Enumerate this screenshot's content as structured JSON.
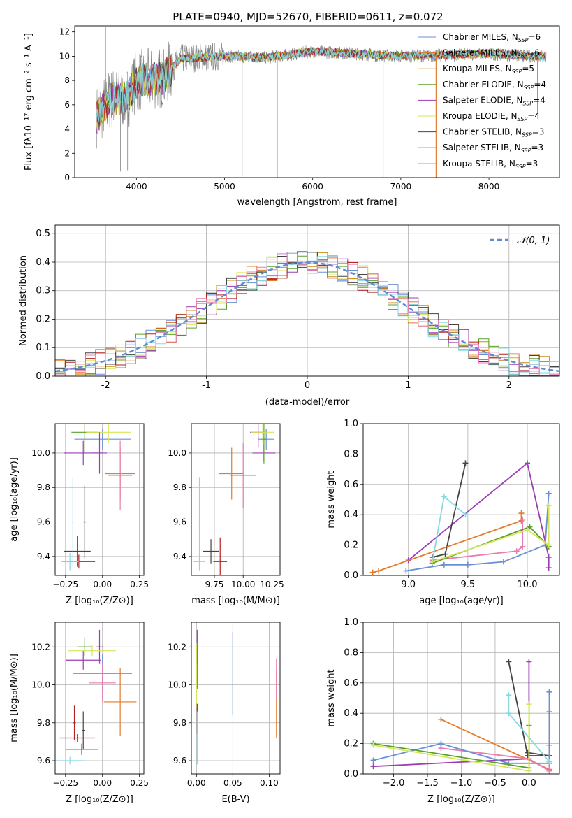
{
  "figure": {
    "title": "PLATE=0940, MJD=52670, FIBERID=0611, z=0.072"
  },
  "palette": {
    "chabrier_miles": "#6b8fd6",
    "salpeter_miles": "#e57a2a",
    "kroupa_miles": "#c98a10",
    "chabrier_elodie": "#5aa02c",
    "salpeter_elodie": "#9b3db3",
    "kroupa_elodie": "#d6e65a",
    "chabrier_stelib": "#444444",
    "salpeter_stelib": "#b22222",
    "kroupa_stelib": "#88d8e0",
    "observed": "#808080",
    "pink": "#e87db0",
    "normal": "#5b8bd6"
  },
  "chart_data": [
    {
      "id": "spectrum",
      "type": "line",
      "title": "PLATE=0940, MJD=52670, FIBERID=0611, z=0.072",
      "xlabel": "wavelength [Angstrom, rest frame]",
      "ylabel": "Flux [fλ10⁻¹⁷ erg cm⁻² s⁻¹ A⁻¹]",
      "xlim": [
        3300,
        8800
      ],
      "ylim": [
        0,
        12.5
      ],
      "xticks": [
        4000,
        5000,
        6000,
        7000,
        8000
      ],
      "yticks": [
        0,
        2,
        4,
        6,
        8,
        10,
        12
      ],
      "continuum": [
        [
          3550,
          5
        ],
        [
          3700,
          6.5
        ],
        [
          3900,
          6.6
        ],
        [
          4000,
          8.0
        ],
        [
          4300,
          8.2
        ],
        [
          4500,
          9.8
        ],
        [
          5000,
          10.0
        ],
        [
          5500,
          9.9
        ],
        [
          6000,
          10.4
        ],
        [
          6500,
          10.2
        ],
        [
          7000,
          10.0
        ],
        [
          7500,
          10.1
        ],
        [
          8000,
          10.2
        ],
        [
          8500,
          10.0
        ],
        [
          8650,
          10.0
        ]
      ],
      "spikes": [
        [
          3650,
          12.4
        ],
        [
          3820,
          0.5
        ],
        [
          3900,
          0.6
        ],
        [
          5200,
          0.1
        ],
        [
          5600,
          0.0
        ],
        [
          6800,
          0.0
        ],
        [
          7400,
          0.0
        ],
        [
          8550,
          5.3
        ]
      ],
      "legend": [
        {
          "label": "Chabrier MILES, N",
          "sub": "SSP",
          "suffix": "=6",
          "color": "#6b8fd6"
        },
        {
          "label": "Salpeter MILES, N",
          "sub": "SSP",
          "suffix": "=6",
          "color": "#e57a2a"
        },
        {
          "label": "Kroupa MILES, N",
          "sub": "SSP",
          "suffix": "=5",
          "color": "#c98a10"
        },
        {
          "label": "Chabrier ELODIE, N",
          "sub": "SSP",
          "suffix": "=4",
          "color": "#5aa02c"
        },
        {
          "label": "Salpeter ELODIE, N",
          "sub": "SSP",
          "suffix": "=4",
          "color": "#9b3db3"
        },
        {
          "label": "Kroupa ELODIE, N",
          "sub": "SSP",
          "suffix": "=4",
          "color": "#d6e65a"
        },
        {
          "label": "Chabrier STELIB, N",
          "sub": "SSP",
          "suffix": "=3",
          "color": "#444444"
        },
        {
          "label": "Salpeter STELIB, N",
          "sub": "SSP",
          "suffix": "=3",
          "color": "#b22222"
        },
        {
          "label": "Kroupa STELIB, N",
          "sub": "SSP",
          "suffix": "=3",
          "color": "#88d8e0"
        }
      ]
    },
    {
      "id": "residuals",
      "type": "line",
      "xlabel": "(data-model)/error",
      "ylabel": "Normed distribution",
      "xlim": [
        -2.5,
        2.5
      ],
      "ylim": [
        0,
        0.53
      ],
      "xticks": [
        -2,
        -1,
        0,
        1,
        2
      ],
      "yticks": [
        0.0,
        0.1,
        0.2,
        0.3,
        0.4,
        0.5
      ],
      "legend": "$\\mathcal{N}(0,1)$",
      "legend_label": "𝒩(0, 1)",
      "bin_width": 0.1,
      "grid": true
    },
    {
      "id": "age_vs_Z",
      "type": "scatter",
      "xlabel": "Z [log₁₀(Z/Z⊙)]",
      "ylabel": "age  [log₁₀(age/yr)]",
      "xlim": [
        -0.32,
        0.28
      ],
      "ylim": [
        9.29,
        10.17
      ],
      "xticks": [
        -0.25,
        0.0,
        0.25
      ],
      "xtick_labels": [
        "−0.25",
        "0.00",
        "0.25"
      ],
      "yticks": [
        9.4,
        9.6,
        9.8,
        10.0
      ],
      "points": [
        {
          "x": 0.0,
          "y": 10.08,
          "xerr": 0.19,
          "yerr": 0.06,
          "color": "#6b8fd6"
        },
        {
          "x": 0.12,
          "y": 9.88,
          "xerr": 0.1,
          "yerr": 0.15,
          "color": "#e57a2a"
        },
        {
          "x": 0.12,
          "y": 9.87,
          "xerr": 0.08,
          "yerr": 0.2,
          "color": "#e87db0"
        },
        {
          "x": -0.13,
          "y": 10.0,
          "xerr": 0.13,
          "yerr": 0.07,
          "color": "#9b3db3"
        },
        {
          "x": -0.12,
          "y": 10.12,
          "xerr": 0.09,
          "yerr": 0.12,
          "color": "#5aa02c"
        },
        {
          "x": 0.04,
          "y": 10.12,
          "xerr": 0.15,
          "yerr": 0.06,
          "color": "#d6e65a"
        },
        {
          "x": -0.02,
          "y": 10.0,
          "xerr": 0.05,
          "yerr": 0.12,
          "color": "#9b3db3"
        },
        {
          "x": -0.17,
          "y": 9.43,
          "xerr": 0.09,
          "yerr": 0.09,
          "color": "#444444"
        },
        {
          "x": -0.12,
          "y": 9.6,
          "xerr": 0.01,
          "yerr": 0.21,
          "color": "#444444"
        },
        {
          "x": -0.16,
          "y": 9.37,
          "xerr": 0.11,
          "yerr": 0.04,
          "color": "#b22222"
        },
        {
          "x": -0.22,
          "y": 9.37,
          "xerr": 0.06,
          "yerr": 0.05,
          "color": "#88d8e0"
        },
        {
          "x": -0.2,
          "y": 9.6,
          "xerr": 0.01,
          "yerr": 0.26,
          "color": "#88d8e0"
        }
      ]
    },
    {
      "id": "age_vs_mass",
      "type": "scatter",
      "xlabel": "mass [log₁₀(M/M⊙)]",
      "ylabel": "",
      "xlim": [
        9.55,
        10.32
      ],
      "ylim": [
        9.29,
        10.17
      ],
      "xticks": [
        9.75,
        10.0,
        10.25
      ],
      "xtick_labels": [
        "9.75",
        "10.00",
        "10.25"
      ],
      "yticks": [
        9.4,
        9.6,
        9.8,
        10.0
      ],
      "points": [
        {
          "x": 10.2,
          "y": 10.08,
          "xerr": 0.07,
          "yerr": 0.06,
          "color": "#6b8fd6"
        },
        {
          "x": 9.9,
          "y": 9.88,
          "xerr": 0.11,
          "yerr": 0.15,
          "color": "#e57a2a"
        },
        {
          "x": 10.0,
          "y": 9.87,
          "xerr": 0.11,
          "yerr": 0.19,
          "color": "#e87db0"
        },
        {
          "x": 10.13,
          "y": 10.12,
          "xerr": 0.07,
          "yerr": 0.09,
          "color": "#9b3db3"
        },
        {
          "x": 10.18,
          "y": 10.0,
          "xerr": 0.1,
          "yerr": 0.05,
          "color": "#9b3db3"
        },
        {
          "x": 10.18,
          "y": 10.08,
          "xerr": 0.02,
          "yerr": 0.14,
          "color": "#5aa02c"
        },
        {
          "x": 10.17,
          "y": 10.12,
          "xerr": 0.1,
          "yerr": 0.06,
          "color": "#d6e65a"
        },
        {
          "x": 9.72,
          "y": 9.43,
          "xerr": 0.07,
          "yerr": 0.07,
          "color": "#444444"
        },
        {
          "x": 9.8,
          "y": 9.37,
          "xerr": 0.06,
          "yerr": 0.14,
          "color": "#b22222"
        },
        {
          "x": 9.62,
          "y": 9.37,
          "xerr": 0.05,
          "yerr": 0.05,
          "color": "#88d8e0"
        },
        {
          "x": 9.62,
          "y": 9.6,
          "xerr": 0.01,
          "yerr": 0.26,
          "color": "#88d8e0"
        }
      ]
    },
    {
      "id": "weight_vs_age",
      "type": "line",
      "xlabel": "age  [log₁₀(age/yr)]",
      "ylabel": "mass weight",
      "xlim": [
        8.62,
        10.27
      ],
      "ylim": [
        0,
        1.0
      ],
      "xticks": [
        9.0,
        9.5,
        10.0
      ],
      "xtick_labels": [
        "9.0",
        "9.5",
        "10.0"
      ],
      "yticks": [
        0.0,
        0.2,
        0.4,
        0.6,
        0.8,
        1.0
      ],
      "series": [
        {
          "color": "#9b3db3",
          "points": [
            [
              9.0,
              0.1
            ],
            [
              10.0,
              0.74
            ],
            [
              10.18,
              0.12
            ],
            [
              10.18,
              0.05
            ]
          ]
        },
        {
          "color": "#444444",
          "points": [
            [
              9.2,
              0.12
            ],
            [
              9.31,
              0.14
            ],
            [
              9.48,
              0.74
            ]
          ]
        },
        {
          "color": "#e57a2a",
          "points": [
            [
              8.7,
              0.02
            ],
            [
              8.75,
              0.03
            ],
            [
              9.95,
              0.36
            ],
            [
              9.95,
              0.41
            ]
          ]
        },
        {
          "color": "#e87db0",
          "points": [
            [
              9.2,
              0.1
            ],
            [
              9.91,
              0.16
            ],
            [
              9.96,
              0.19
            ],
            [
              9.96,
              0.37
            ]
          ]
        },
        {
          "color": "#6b8fd6",
          "points": [
            [
              8.98,
              0.03
            ],
            [
              9.3,
              0.07
            ],
            [
              9.5,
              0.07
            ],
            [
              9.8,
              0.09
            ],
            [
              10.15,
              0.2
            ],
            [
              10.18,
              0.54
            ]
          ]
        },
        {
          "color": "#88d8e0",
          "points": [
            [
              9.2,
              0.08
            ],
            [
              9.3,
              0.52
            ],
            [
              9.48,
              0.4
            ]
          ]
        },
        {
          "color": "#5aa02c",
          "points": [
            [
              9.2,
              0.08
            ],
            [
              10.02,
              0.32
            ],
            [
              10.18,
              0.19
            ]
          ]
        },
        {
          "color": "#d6e65a",
          "points": [
            [
              9.2,
              0.09
            ],
            [
              10.0,
              0.3
            ],
            [
              10.18,
              0.2
            ],
            [
              10.18,
              0.46
            ]
          ]
        }
      ]
    },
    {
      "id": "mass_vs_Z",
      "type": "scatter",
      "xlabel": "Z [log₁₀(Z/Z⊙)]",
      "ylabel": "mass [log₁₀(M/M⊙)]",
      "xlim": [
        -0.32,
        0.28
      ],
      "ylim": [
        9.53,
        10.33
      ],
      "xticks": [
        -0.25,
        0.0,
        0.25
      ],
      "xtick_labels": [
        "−0.25",
        "0.00",
        "0.25"
      ],
      "yticks": [
        9.6,
        9.8,
        10.0,
        10.2
      ],
      "points": [
        {
          "x": 0.0,
          "y": 10.06,
          "xerr": 0.2,
          "yerr": 0.1,
          "color": "#6b8fd6"
        },
        {
          "x": 0.12,
          "y": 9.91,
          "xerr": 0.11,
          "yerr": 0.18,
          "color": "#e57a2a"
        },
        {
          "x": 0.0,
          "y": 10.01,
          "xerr": 0.09,
          "yerr": 0.1,
          "color": "#e87db0"
        },
        {
          "x": -0.13,
          "y": 10.13,
          "xerr": 0.12,
          "yerr": 0.05,
          "color": "#9b3db3"
        },
        {
          "x": -0.02,
          "y": 10.2,
          "xerr": 0.02,
          "yerr": 0.09,
          "color": "#9b3db3"
        },
        {
          "x": -0.12,
          "y": 10.2,
          "xerr": 0.05,
          "yerr": 0.05,
          "color": "#5aa02c"
        },
        {
          "x": -0.07,
          "y": 10.18,
          "xerr": 0.16,
          "yerr": 0.03,
          "color": "#d6e65a"
        },
        {
          "x": -0.14,
          "y": 9.66,
          "xerr": 0.11,
          "yerr": 0.03,
          "color": "#444444"
        },
        {
          "x": -0.13,
          "y": 9.76,
          "xerr": 0.01,
          "yerr": 0.1,
          "color": "#444444"
        },
        {
          "x": -0.17,
          "y": 9.72,
          "xerr": 0.12,
          "yerr": 0.02,
          "color": "#b22222"
        },
        {
          "x": -0.19,
          "y": 9.8,
          "xerr": 0.01,
          "yerr": 0.09,
          "color": "#b22222"
        },
        {
          "x": -0.22,
          "y": 9.6,
          "xerr": 0.1,
          "yerr": 0.02,
          "color": "#88d8e0"
        }
      ]
    },
    {
      "id": "mass_vs_ebv",
      "type": "scatter",
      "xlabel": "E(B-V)",
      "ylabel": "",
      "xlim": [
        -0.007,
        0.115
      ],
      "ylim": [
        9.53,
        10.33
      ],
      "xticks": [
        0.0,
        0.05,
        0.1
      ],
      "xtick_labels": [
        "0.00",
        "0.05",
        "0.10"
      ],
      "yticks": [
        9.6,
        9.8,
        10.0,
        10.2
      ],
      "points": [
        {
          "x": 0.05,
          "y": 10.06,
          "xerr": 0.0,
          "yerr": 0.22,
          "color": "#6b8fd6"
        },
        {
          "x": 0.11,
          "y": 9.9,
          "xerr": 0.0,
          "yerr": 0.18,
          "color": "#e57a2a"
        },
        {
          "x": 0.11,
          "y": 10.03,
          "xerr": 0.0,
          "yerr": 0.11,
          "color": "#e87db0"
        },
        {
          "x": 0.001,
          "y": 10.2,
          "xerr": 0.0,
          "yerr": 0.09,
          "color": "#9b3db3"
        },
        {
          "x": 0.001,
          "y": 10.1,
          "xerr": 0.0,
          "yerr": 0.12,
          "color": "#5aa02c"
        },
        {
          "x": 0.0,
          "y": 10.05,
          "xerr": 0.0,
          "yerr": 0.17,
          "color": "#d6e65a"
        },
        {
          "x": 0.001,
          "y": 9.82,
          "xerr": 0.0,
          "yerr": 0.08,
          "color": "#b22222"
        },
        {
          "x": 0.001,
          "y": 9.72,
          "xerr": 0.0,
          "yerr": 0.14,
          "color": "#88d8e0"
        }
      ]
    },
    {
      "id": "weight_vs_Z",
      "type": "line",
      "xlabel": "Z [log₁₀(Z/Z⊙)]",
      "ylabel": "mass weight",
      "xlim": [
        -2.45,
        0.45
      ],
      "ylim": [
        0,
        1.0
      ],
      "xticks": [
        -2.0,
        -1.5,
        -1.0,
        -0.5,
        0.0
      ],
      "xtick_labels": [
        "−2.0",
        "−1.5",
        "−1.0",
        "−0.5",
        "0.0"
      ],
      "yticks": [
        0.0,
        0.2,
        0.4,
        0.6,
        0.8,
        1.0
      ],
      "series": [
        {
          "color": "#9b3db3",
          "points": [
            [
              -2.3,
              0.05
            ],
            [
              0.0,
              0.1
            ],
            [
              0.0,
              0.74
            ]
          ]
        },
        {
          "color": "#444444",
          "points": [
            [
              -0.02,
              0.14
            ],
            [
              0.3,
              0.12
            ],
            [
              -0.02,
              0.12
            ],
            [
              -0.3,
              0.74
            ]
          ]
        },
        {
          "color": "#e57a2a",
          "points": [
            [
              -1.3,
              0.36
            ],
            [
              0.3,
              0.03
            ],
            [
              0.3,
              0.41
            ]
          ]
        },
        {
          "color": "#e87db0",
          "points": [
            [
              -1.3,
              0.17
            ],
            [
              0.0,
              0.1
            ],
            [
              0.3,
              0.02
            ],
            [
              0.3,
              0.19
            ]
          ]
        },
        {
          "color": "#6b8fd6",
          "points": [
            [
              -2.3,
              0.09
            ],
            [
              -1.3,
              0.2
            ],
            [
              -0.3,
              0.07
            ],
            [
              0.3,
              0.07
            ],
            [
              0.3,
              0.54
            ]
          ]
        },
        {
          "color": "#88d8e0",
          "points": [
            [
              -0.3,
              0.52
            ],
            [
              -0.3,
              0.4
            ],
            [
              0.3,
              0.08
            ]
          ]
        },
        {
          "color": "#5aa02c",
          "points": [
            [
              -2.3,
              0.2
            ],
            [
              0.0,
              0.04
            ],
            [
              0.0,
              0.32
            ]
          ]
        },
        {
          "color": "#d6e65a",
          "points": [
            [
              -2.3,
              0.19
            ],
            [
              0.0,
              0.02
            ],
            [
              0.0,
              0.46
            ]
          ]
        }
      ]
    }
  ]
}
